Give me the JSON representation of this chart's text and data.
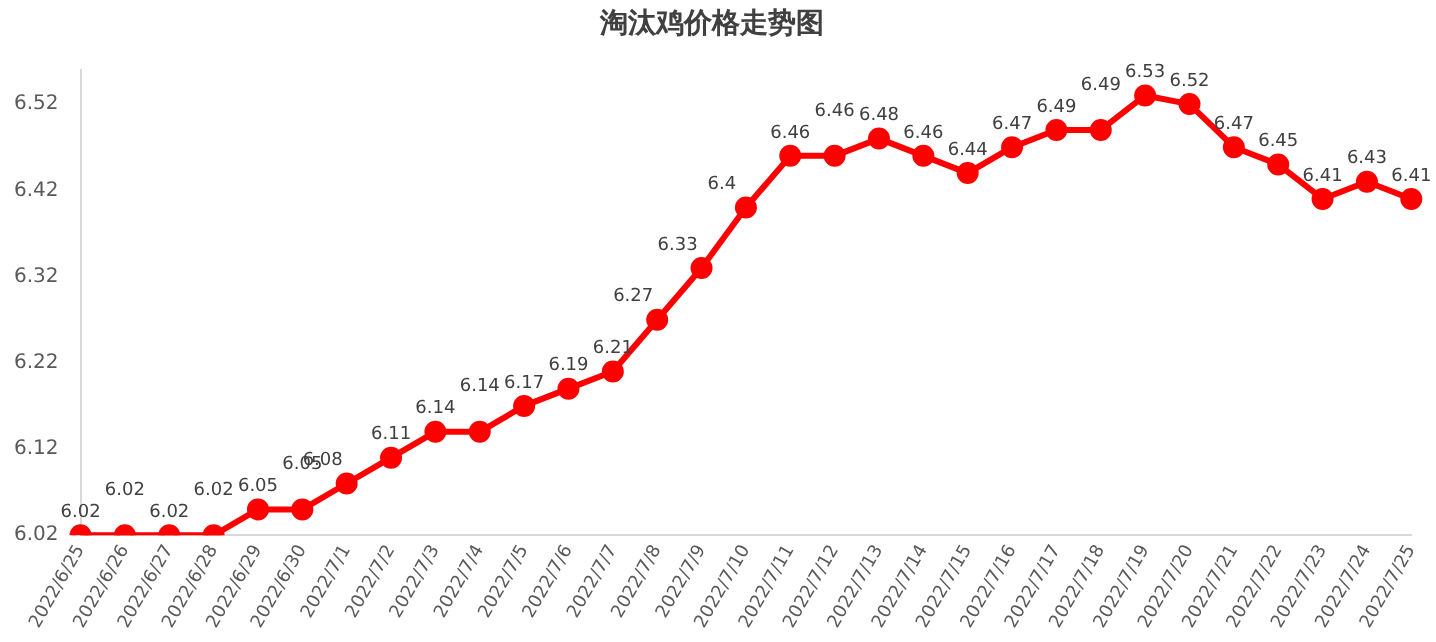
{
  "chart_data": {
    "type": "line",
    "title": "淘汰鸡价格走势图",
    "categories": [
      "2022/6/25",
      "2022/6/26",
      "2022/6/27",
      "2022/6/28",
      "2022/6/29",
      "2022/6/30",
      "2022/7/1",
      "2022/7/2",
      "2022/7/3",
      "2022/7/4",
      "2022/7/5",
      "2022/7/6",
      "2022/7/7",
      "2022/7/8",
      "2022/7/9",
      "2022/7/10",
      "2022/7/11",
      "2022/7/12",
      "2022/7/13",
      "2022/7/14",
      "2022/7/15",
      "2022/7/16",
      "2022/7/17",
      "2022/7/18",
      "2022/7/19",
      "2022/7/20",
      "2022/7/21",
      "2022/7/22",
      "2022/7/23",
      "2022/7/24",
      "2022/7/25"
    ],
    "series": [
      {
        "color": "#ff0000",
        "values": [
          6.02,
          6.02,
          6.02,
          6.02,
          6.05,
          6.05,
          6.08,
          6.11,
          6.14,
          6.14,
          6.17,
          6.19,
          6.21,
          6.27,
          6.33,
          6.4,
          6.46,
          6.46,
          6.48,
          6.46,
          6.44,
          6.47,
          6.49,
          6.49,
          6.53,
          6.52,
          6.47,
          6.45,
          6.41,
          6.43,
          6.41
        ]
      }
    ],
    "ylim": [
      6.02,
      6.56
    ],
    "yticks": [
      6.02,
      6.12,
      6.22,
      6.32,
      6.42,
      6.52
    ],
    "grid": false,
    "legend": false,
    "marker": "circle",
    "line_style": "solid",
    "data_labels": true
  }
}
